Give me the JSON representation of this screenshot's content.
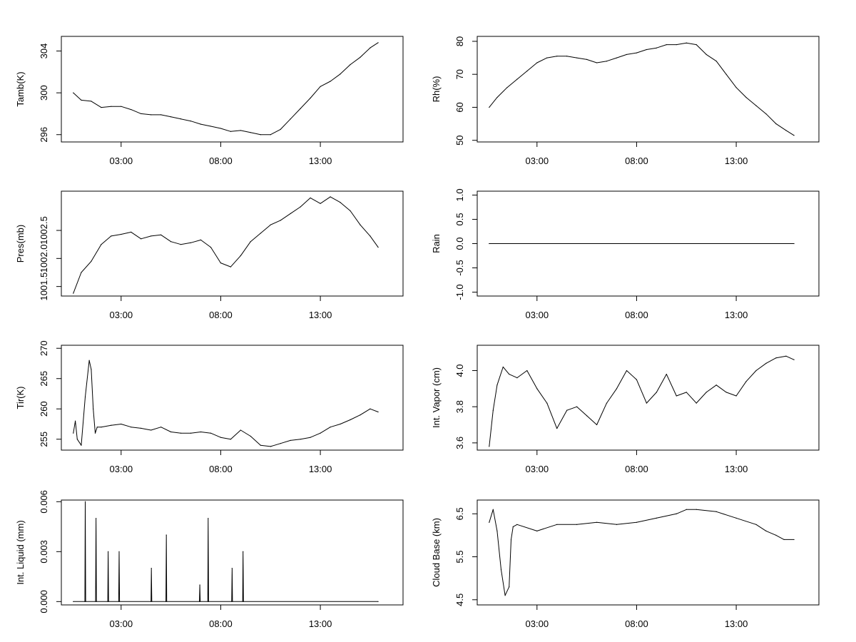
{
  "chart_data": [
    {
      "type": "line",
      "ylabel": "Tamb(K)",
      "x_ticks": [
        "03:00",
        "08:00",
        "13:00"
      ],
      "y_ticks": [
        "296",
        "300",
        "304"
      ],
      "ylim": [
        295.3,
        305.4
      ],
      "line_color": "#000000",
      "series": [
        {
          "x": [
            0.6,
            1.0,
            1.5,
            2.0,
            2.5,
            3.0,
            3.5,
            4.0,
            4.5,
            5.0,
            5.5,
            6.0,
            6.5,
            7.0,
            7.5,
            8.0,
            8.5,
            9.0,
            9.5,
            10.0,
            10.5,
            11.0,
            11.5,
            12.0,
            12.5,
            13.0,
            13.5,
            14.0,
            14.5,
            15.0,
            15.5,
            15.9
          ],
          "y": [
            300.0,
            299.3,
            299.2,
            298.6,
            298.7,
            298.7,
            298.4,
            298.0,
            297.9,
            297.9,
            297.7,
            297.5,
            297.3,
            297.0,
            296.8,
            296.6,
            296.3,
            296.4,
            296.2,
            296.0,
            296.0,
            296.5,
            297.5,
            298.5,
            299.5,
            300.6,
            301.1,
            301.8,
            302.7,
            303.4,
            304.3,
            304.8
          ]
        }
      ]
    },
    {
      "type": "line",
      "ylabel": "Rh(%)",
      "x_ticks": [
        "03:00",
        "08:00",
        "13:00"
      ],
      "y_ticks": [
        "50",
        "60",
        "70",
        "80"
      ],
      "ylim": [
        49.5,
        81.5
      ],
      "line_color": "#000000",
      "series": [
        {
          "x": [
            0.6,
            1.0,
            1.5,
            2.0,
            2.5,
            3.0,
            3.5,
            4.0,
            4.5,
            5.0,
            5.5,
            6.0,
            6.5,
            7.0,
            7.5,
            8.0,
            8.5,
            9.0,
            9.5,
            10.0,
            10.5,
            11.0,
            11.5,
            12.0,
            12.5,
            13.0,
            13.5,
            14.0,
            14.5,
            15.0,
            15.5,
            15.9
          ],
          "y": [
            60,
            63,
            66,
            68.5,
            71,
            73.5,
            75,
            75.5,
            75.5,
            75,
            74.5,
            73.5,
            74,
            75,
            76,
            76.5,
            77.5,
            78,
            79,
            79,
            79.5,
            79,
            76,
            74,
            70,
            66,
            63,
            60.5,
            58,
            55,
            53,
            51.5
          ]
        }
      ]
    },
    {
      "type": "line",
      "ylabel": "Pres(mb)",
      "x_ticks": [
        "03:00",
        "08:00",
        "13:00"
      ],
      "y_ticks": [
        "1001.5",
        "1002.0",
        "1002.5"
      ],
      "ylim": [
        1001.33,
        1003.2
      ],
      "line_color": "#000000",
      "series": [
        {
          "x": [
            0.6,
            1.0,
            1.5,
            2.0,
            2.5,
            3.0,
            3.5,
            4.0,
            4.5,
            5.0,
            5.5,
            6.0,
            6.5,
            7.0,
            7.5,
            8.0,
            8.5,
            9.0,
            9.5,
            10.0,
            10.5,
            11.0,
            11.5,
            12.0,
            12.5,
            13.0,
            13.5,
            14.0,
            14.5,
            15.0,
            15.5,
            15.9
          ],
          "y": [
            1001.38,
            1001.75,
            1001.95,
            1002.25,
            1002.4,
            1002.43,
            1002.47,
            1002.35,
            1002.4,
            1002.42,
            1002.3,
            1002.25,
            1002.28,
            1002.33,
            1002.2,
            1001.92,
            1001.85,
            1002.05,
            1002.3,
            1002.45,
            1002.6,
            1002.68,
            1002.8,
            1002.92,
            1003.08,
            1002.98,
            1003.1,
            1003.0,
            1002.85,
            1002.6,
            1002.4,
            1002.2
          ]
        }
      ]
    },
    {
      "type": "line",
      "ylabel": "Rain",
      "x_ticks": [
        "03:00",
        "08:00",
        "13:00"
      ],
      "y_ticks": [
        "-1.0",
        "-0.5",
        "0.0",
        "0.5",
        "1.0"
      ],
      "ylim": [
        -1.08,
        1.08
      ],
      "line_color": "#000000",
      "series": [
        {
          "x": [
            0.6,
            15.9
          ],
          "y": [
            0,
            0
          ]
        }
      ]
    },
    {
      "type": "line",
      "ylabel": "Tir(K)",
      "x_ticks": [
        "03:00",
        "08:00",
        "13:00"
      ],
      "y_ticks": [
        "255",
        "260",
        "265",
        "270"
      ],
      "ylim": [
        253.2,
        270.5
      ],
      "line_color": "#000000",
      "series": [
        {
          "x": [
            0.6,
            0.7,
            0.8,
            1.0,
            1.2,
            1.4,
            1.5,
            1.6,
            1.7,
            1.8,
            2.0,
            2.5,
            3.0,
            3.5,
            4.0,
            4.5,
            5.0,
            5.5,
            6.0,
            6.5,
            7.0,
            7.5,
            8.0,
            8.5,
            9.0,
            9.5,
            10.0,
            10.5,
            11.0,
            11.5,
            12.0,
            12.5,
            13.0,
            13.5,
            14.0,
            14.5,
            15.0,
            15.5,
            15.9
          ],
          "y": [
            256.0,
            258.0,
            255.0,
            254.0,
            262.0,
            268.0,
            266.5,
            260.0,
            256.0,
            257.0,
            257.0,
            257.3,
            257.5,
            257.0,
            256.8,
            256.5,
            257.0,
            256.2,
            256.0,
            256.0,
            256.2,
            256.0,
            255.3,
            255.0,
            256.5,
            255.5,
            254.0,
            253.8,
            254.3,
            254.8,
            255.0,
            255.3,
            256.0,
            257.0,
            257.5,
            258.2,
            259.0,
            260.0,
            259.5
          ]
        }
      ]
    },
    {
      "type": "line",
      "ylabel": "Int. Vapor (cm)",
      "x_ticks": [
        "03:00",
        "08:00",
        "13:00"
      ],
      "y_ticks": [
        "3.6",
        "3.8",
        "4.0"
      ],
      "ylim": [
        3.56,
        4.14
      ],
      "line_color": "#000000",
      "series": [
        {
          "x": [
            0.6,
            0.8,
            1.0,
            1.3,
            1.6,
            2.0,
            2.5,
            3.0,
            3.5,
            4.0,
            4.5,
            5.0,
            5.5,
            6.0,
            6.5,
            7.0,
            7.5,
            8.0,
            8.5,
            9.0,
            9.5,
            10.0,
            10.5,
            11.0,
            11.5,
            12.0,
            12.5,
            13.0,
            13.5,
            14.0,
            14.5,
            15.0,
            15.5,
            15.9
          ],
          "y": [
            3.58,
            3.78,
            3.92,
            4.02,
            3.98,
            3.96,
            4.0,
            3.9,
            3.82,
            3.68,
            3.78,
            3.8,
            3.75,
            3.7,
            3.82,
            3.9,
            4.0,
            3.95,
            3.82,
            3.88,
            3.98,
            3.86,
            3.88,
            3.82,
            3.88,
            3.92,
            3.88,
            3.86,
            3.94,
            4.0,
            4.04,
            4.07,
            4.08,
            4.06
          ]
        }
      ]
    },
    {
      "type": "line",
      "ylabel": "Int. Liquid (mm)",
      "x_ticks": [
        "03:00",
        "08:00",
        "13:00"
      ],
      "y_ticks": [
        "0.000",
        "0.003",
        "0.006"
      ],
      "ylim": [
        -0.0002,
        0.0061
      ],
      "line_color": "#000000",
      "series": [
        {
          "x": [
            0.6,
            1.18,
            1.2,
            1.22,
            1.72,
            1.74,
            1.76,
            2.33,
            2.35,
            2.37,
            2.88,
            2.9,
            2.92,
            4.5,
            4.52,
            4.54,
            5.25,
            5.27,
            5.29,
            6.93,
            6.95,
            6.97,
            7.35,
            7.37,
            7.39,
            8.55,
            8.57,
            8.59,
            9.1,
            9.12,
            9.14,
            15.9
          ],
          "y": [
            0,
            0,
            0.006,
            0,
            0,
            0.005,
            0,
            0,
            0.003,
            0,
            0,
            0.003,
            0,
            0,
            0.002,
            0,
            0,
            0.004,
            0,
            0,
            0.001,
            0,
            0,
            0.005,
            0,
            0,
            0.002,
            0,
            0,
            0.003,
            0,
            0
          ]
        }
      ]
    },
    {
      "type": "line",
      "ylabel": "Cloud Base (km)",
      "x_ticks": [
        "03:00",
        "08:00",
        "13:00"
      ],
      "y_ticks": [
        "4.5",
        "5.5",
        "6.5"
      ],
      "ylim": [
        4.38,
        6.82
      ],
      "line_color": "#000000",
      "series": [
        {
          "x": [
            0.6,
            0.8,
            1.0,
            1.2,
            1.4,
            1.6,
            1.7,
            1.8,
            2.0,
            3.0,
            4.0,
            5.0,
            6.0,
            7.0,
            8.0,
            9.0,
            10.0,
            10.5,
            11.0,
            12.0,
            13.0,
            14.0,
            14.5,
            15.0,
            15.4,
            15.9
          ],
          "y": [
            6.3,
            6.6,
            6.1,
            5.2,
            4.6,
            4.8,
            5.9,
            6.2,
            6.25,
            6.1,
            6.25,
            6.25,
            6.3,
            6.25,
            6.3,
            6.4,
            6.5,
            6.6,
            6.6,
            6.55,
            6.4,
            6.25,
            6.1,
            6.0,
            5.9,
            5.9
          ]
        }
      ]
    }
  ]
}
